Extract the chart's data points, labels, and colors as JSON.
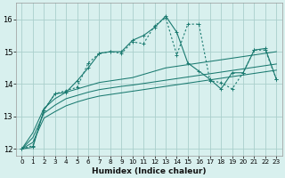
{
  "xlabel": "Humidex (Indice chaleur)",
  "background_color": "#d8f0ee",
  "grid_color": "#aacfcc",
  "line_color": "#1a7a70",
  "xlim": [
    -0.5,
    23.5
  ],
  "ylim": [
    11.8,
    16.5
  ],
  "yticks": [
    12,
    13,
    14,
    15,
    16
  ],
  "xticks": [
    0,
    1,
    2,
    3,
    4,
    5,
    6,
    7,
    8,
    9,
    10,
    11,
    12,
    13,
    14,
    15,
    16,
    17,
    18,
    19,
    20,
    21,
    22,
    23
  ],
  "x": [
    0,
    1,
    2,
    3,
    4,
    5,
    6,
    7,
    8,
    9,
    10,
    11,
    12,
    13,
    14,
    15,
    16,
    17,
    18,
    19,
    20,
    21,
    22,
    23
  ],
  "series_dotted": [
    12.0,
    12.1,
    13.2,
    13.7,
    13.8,
    13.9,
    14.65,
    14.95,
    15.0,
    14.95,
    15.3,
    15.25,
    15.8,
    16.05,
    14.9,
    15.85,
    15.85,
    14.1,
    14.05,
    13.85,
    14.35,
    15.05,
    15.05,
    14.15
  ],
  "series_solid": [
    12.0,
    12.05,
    13.2,
    13.7,
    13.75,
    14.1,
    14.5,
    14.95,
    15.0,
    15.0,
    15.35,
    15.5,
    15.75,
    16.1,
    15.6,
    14.65,
    14.4,
    14.15,
    13.85,
    14.35,
    14.35,
    15.05,
    15.1,
    14.15
  ],
  "line1": [
    12.0,
    12.5,
    13.25,
    13.55,
    13.75,
    13.85,
    13.95,
    14.05,
    14.1,
    14.15,
    14.2,
    14.3,
    14.4,
    14.5,
    14.55,
    14.6,
    14.65,
    14.7,
    14.75,
    14.8,
    14.85,
    14.9,
    14.95,
    15.0
  ],
  "line2": [
    12.0,
    12.35,
    13.1,
    13.35,
    13.55,
    13.65,
    13.75,
    13.83,
    13.88,
    13.93,
    13.97,
    14.02,
    14.07,
    14.12,
    14.17,
    14.22,
    14.27,
    14.32,
    14.37,
    14.42,
    14.47,
    14.52,
    14.57,
    14.62
  ],
  "line3": [
    12.0,
    12.2,
    12.95,
    13.15,
    13.33,
    13.45,
    13.55,
    13.63,
    13.68,
    13.73,
    13.78,
    13.83,
    13.88,
    13.93,
    13.98,
    14.03,
    14.08,
    14.13,
    14.18,
    14.23,
    14.28,
    14.33,
    14.38,
    14.43
  ]
}
